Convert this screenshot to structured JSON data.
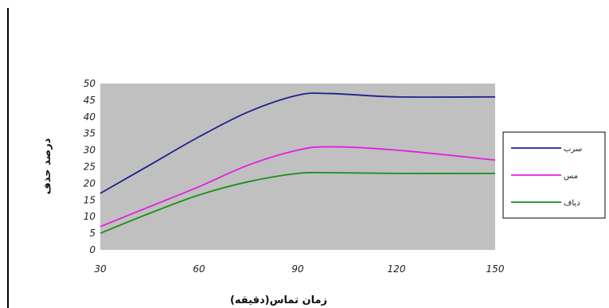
{
  "chart_data": {
    "type": "line",
    "xlabel": "زمان تماس(دقیقه)",
    "ylabel": "درصد حذف",
    "x": [
      30,
      60,
      90,
      120,
      150
    ],
    "xlim": [
      30,
      150
    ],
    "ylim": [
      0,
      50
    ],
    "yticks": [
      "0",
      "5",
      "10",
      "15",
      "20",
      "25",
      "30",
      "35",
      "40",
      "45",
      "50"
    ],
    "xticks": [
      "30",
      "60",
      "90",
      "120",
      "150"
    ],
    "grid": false,
    "legend_position": "right",
    "plot_background": "#c0c0c0",
    "series": [
      {
        "name": "سرب",
        "color": "#1f1f8f",
        "points": [
          [
            30,
            17
          ],
          [
            45,
            25.5
          ],
          [
            60,
            34
          ],
          [
            75,
            41.5
          ],
          [
            90,
            46.5
          ],
          [
            100,
            47
          ],
          [
            120,
            46
          ],
          [
            150,
            46
          ]
        ]
      },
      {
        "name": "مس",
        "color": "#e020e0",
        "points": [
          [
            30,
            7
          ],
          [
            45,
            13
          ],
          [
            60,
            19
          ],
          [
            75,
            25.5
          ],
          [
            90,
            30
          ],
          [
            100,
            31
          ],
          [
            120,
            30
          ],
          [
            150,
            27
          ]
        ]
      },
      {
        "name": "دیاف",
        "color": "#1a8f1a",
        "points": [
          [
            30,
            5
          ],
          [
            45,
            11
          ],
          [
            60,
            16.5
          ],
          [
            75,
            20.5
          ],
          [
            90,
            23
          ],
          [
            100,
            23.2
          ],
          [
            120,
            23
          ],
          [
            150,
            23
          ]
        ]
      }
    ]
  }
}
